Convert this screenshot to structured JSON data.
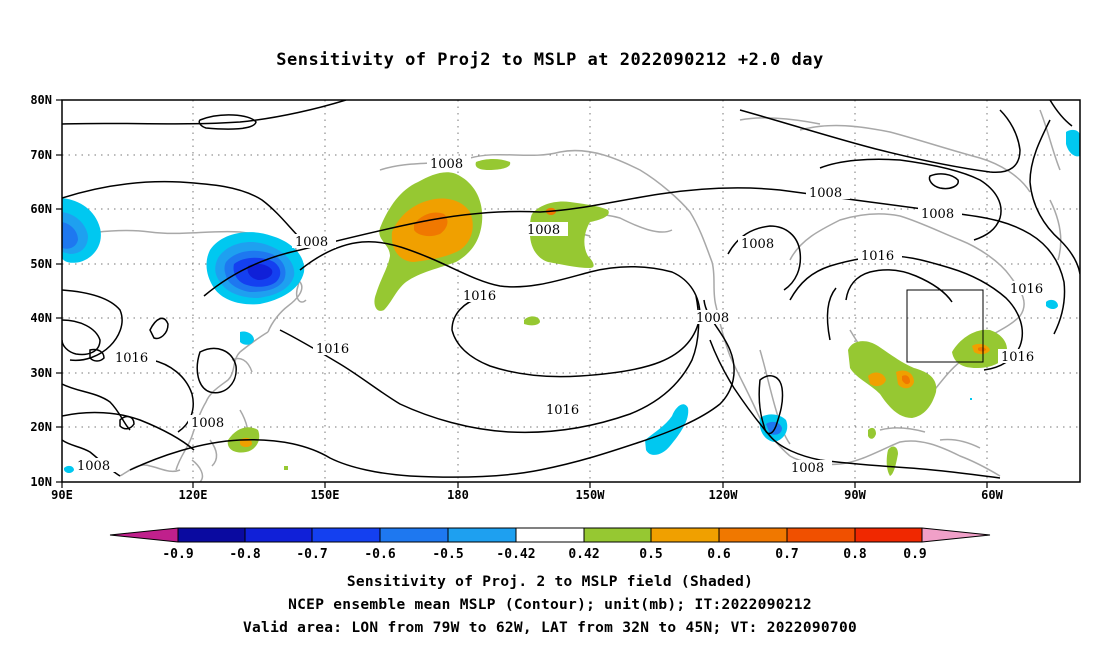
{
  "title": "Sensitivity of Proj2 to MSLP at 2022090212 +2.0 day",
  "lat_labels": [
    "80N",
    "70N",
    "60N",
    "50N",
    "40N",
    "30N",
    "20N",
    "10N"
  ],
  "lon_labels": [
    "90E",
    "120E",
    "150E",
    "180",
    "150W",
    "120W",
    "90W",
    "60W"
  ],
  "contour_labels": {
    "c1": "1008",
    "c2": "1008",
    "c3": "1008",
    "c4": "1008",
    "c5": "1008",
    "c6": "1008",
    "c7": "1008",
    "c8": "1008",
    "c9": "1008",
    "c10": "1008",
    "c11": "1016",
    "c12": "1016",
    "c13": "1016",
    "c14": "1016",
    "c15": "1016",
    "c16": "1016",
    "c17": "1016"
  },
  "colorbar": {
    "labels": [
      "-0.9",
      "-0.8",
      "-0.7",
      "-0.6",
      "-0.5",
      "-0.42",
      "0.42",
      "0.5",
      "0.6",
      "0.7",
      "0.8",
      "0.9"
    ],
    "colors": {
      "neg_tip": "#c0208c",
      "neg_09": "#0a0aa0",
      "neg_08": "#1020d8",
      "neg_07": "#1440f0",
      "neg_06": "#1e78f0",
      "neg_05": "#1ea0f0",
      "neg_042": "#00c8f0",
      "zero": "#ffffff",
      "pos_042": "#96c832",
      "pos_05": "#f0a000",
      "pos_06": "#f07800",
      "pos_07": "#f05000",
      "pos_08": "#f02800",
      "pos_09": "#ff0000",
      "pos_tip": "#f0a0c8"
    }
  },
  "caption": {
    "line1": "Sensitivity of Proj. 2 to MSLP field (Shaded)",
    "line2": "NCEP ensemble mean MSLP (Contour); unit(mb); IT:2022090212",
    "line3": "Valid area: LON from 79W to 62W, LAT from 32N to 45N; VT: 2022090700"
  }
}
